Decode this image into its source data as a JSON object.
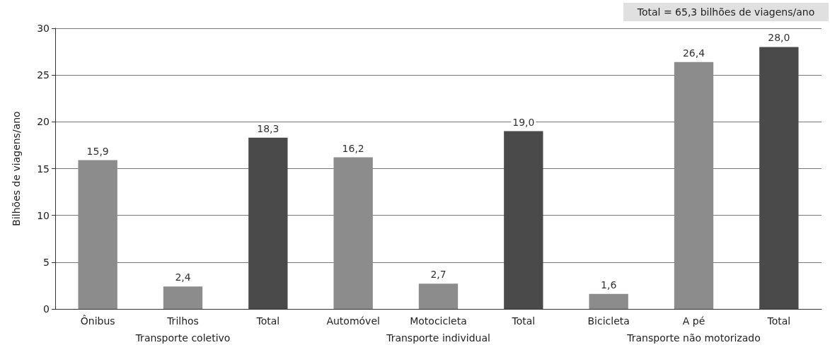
{
  "chart_data": {
    "type": "bar",
    "ylabel": "Bilhões de viagens/ano",
    "categories": [
      "Ônibus",
      "Trilhos",
      "Total",
      "Automóvel",
      "Motocicleta",
      "Total",
      "Bicicleta",
      "A pé",
      "Total"
    ],
    "values": [
      15.9,
      2.4,
      18.3,
      16.2,
      2.7,
      19.0,
      1.6,
      26.4,
      28.0
    ],
    "colors": [
      "#8c8c8c",
      "#8c8c8c",
      "#4a4a4a",
      "#8c8c8c",
      "#8c8c8c",
      "#4a4a4a",
      "#8c8c8c",
      "#8c8c8c",
      "#4a4a4a"
    ],
    "value_labels": [
      "15,9",
      "2,4",
      "18,3",
      "16,2",
      "2,7",
      "19,0",
      "1,6",
      "26,4",
      "28,0"
    ],
    "ylim": [
      0,
      30
    ],
    "yticks": [
      0,
      5,
      10,
      15,
      20,
      25,
      30
    ],
    "grid": "y",
    "annotations": [
      "Transporte coletivo",
      "Transporte individual",
      "Transporte não motorizado",
      "Total = 65,3 bilhões de viagens/ano"
    ]
  }
}
